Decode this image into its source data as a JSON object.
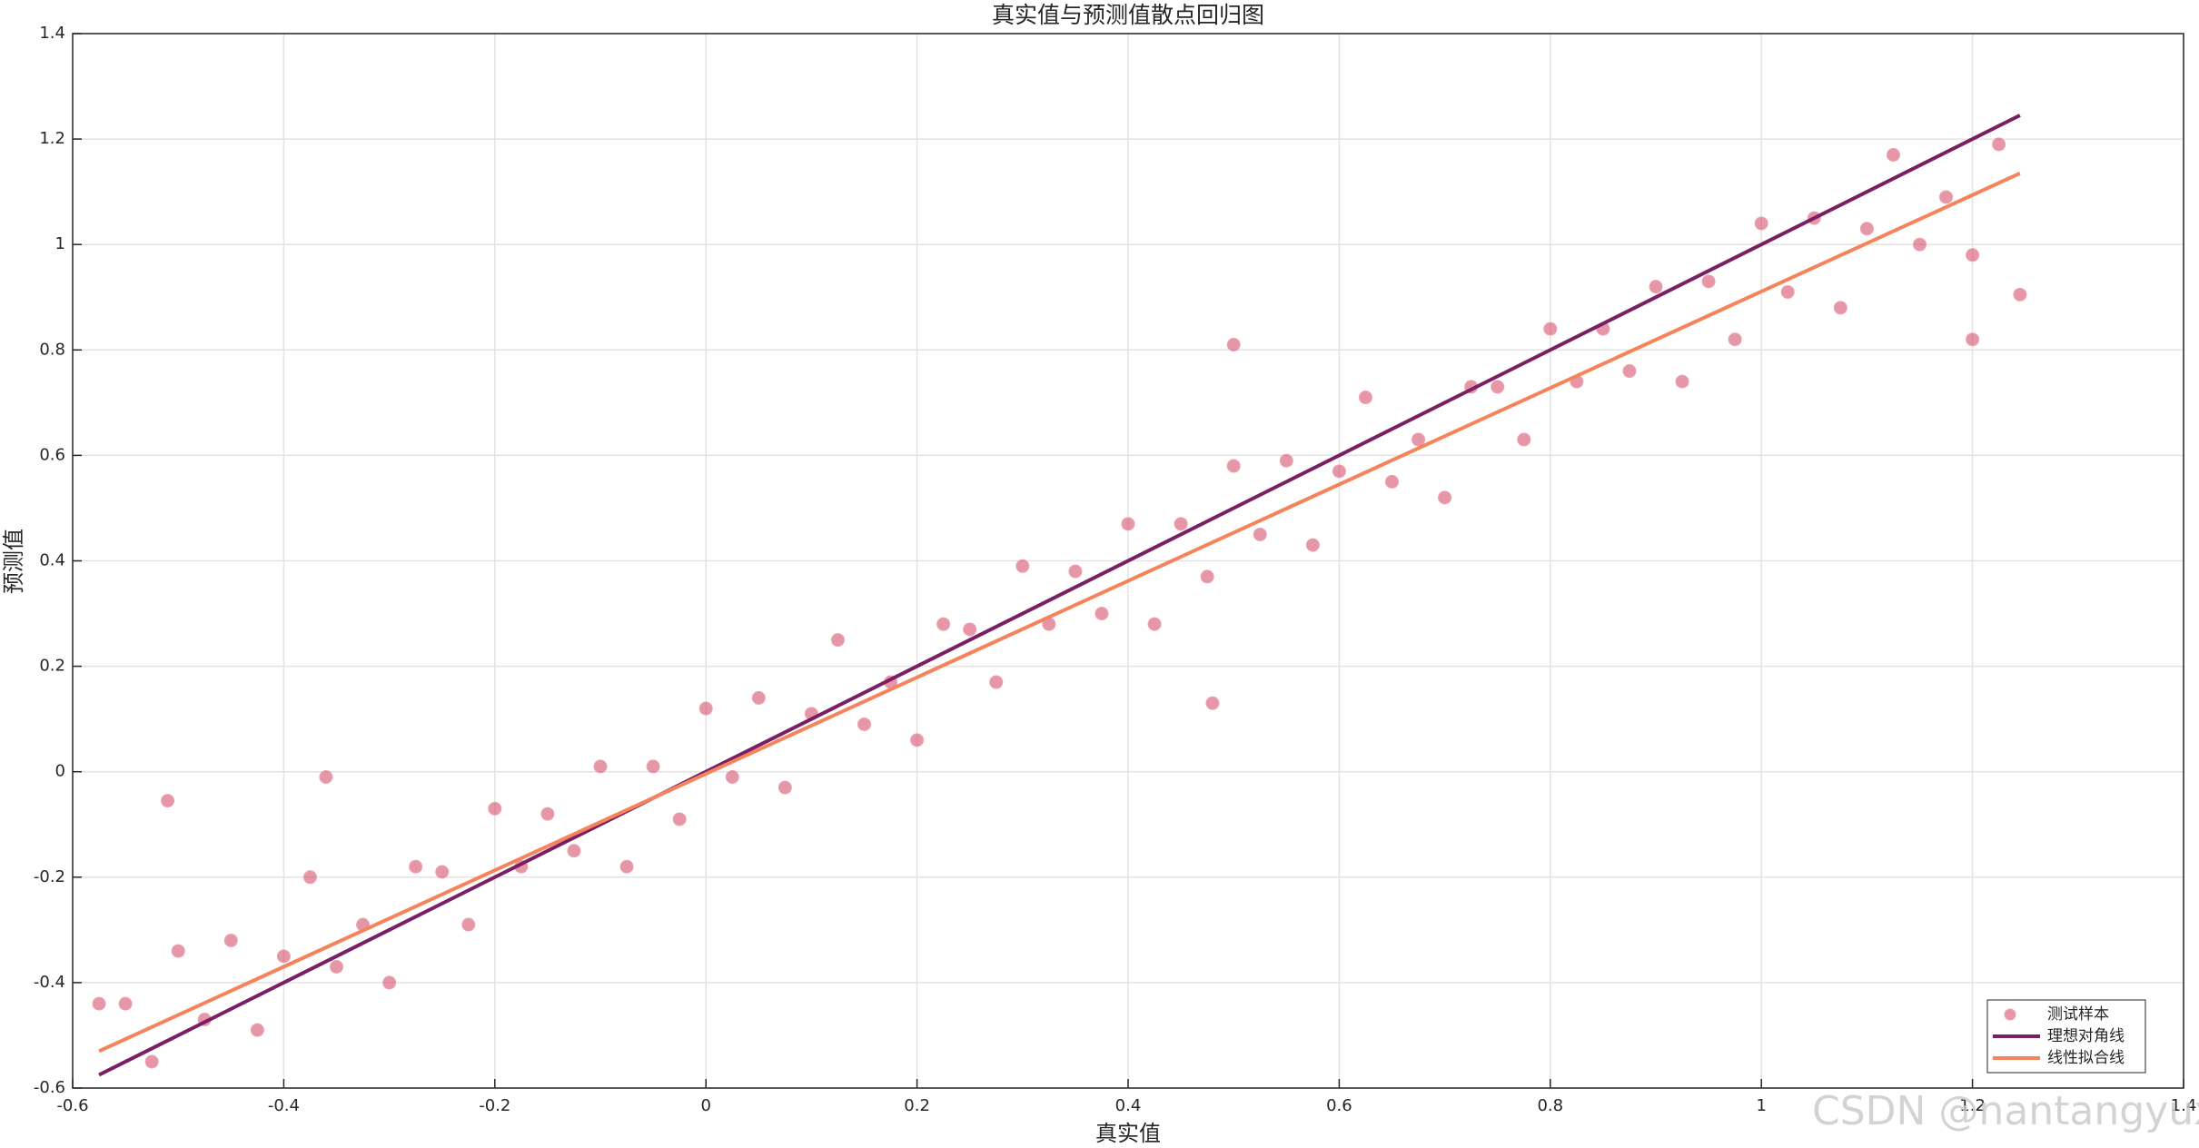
{
  "chart_data": {
    "type": "scatter",
    "title": "真实值与预测值散点回归图",
    "xlabel": "真实值",
    "ylabel": "预测值",
    "xlim": [
      -0.6,
      1.4
    ],
    "ylim": [
      -0.6,
      1.4
    ],
    "xticks": [
      -0.6,
      -0.4,
      -0.2,
      0,
      0.2,
      0.4,
      0.6,
      0.8,
      1,
      1.2,
      1.4
    ],
    "yticks": [
      -0.6,
      -0.4,
      -0.2,
      0,
      0.2,
      0.4,
      0.6,
      0.8,
      1,
      1.2,
      1.4
    ],
    "grid": true,
    "legend": "lower right",
    "series": [
      {
        "name": "测试样本",
        "type": "scatter",
        "color": "#cf3f5e",
        "x": [
          -0.55,
          -0.525,
          -0.5,
          -0.475,
          -0.45,
          -0.425,
          -0.4,
          -0.375,
          -0.35,
          -0.325,
          -0.3,
          -0.275,
          -0.25,
          -0.225,
          -0.2,
          -0.175,
          -0.15,
          -0.125,
          -0.1,
          -0.075,
          -0.05,
          -0.025,
          0,
          0.025,
          0.05,
          0.075,
          0.1,
          0.125,
          0.15,
          0.175,
          0.2,
          0.225,
          0.25,
          0.275,
          0.3,
          0.325,
          0.35,
          0.375,
          0.4,
          0.425,
          0.45,
          0.475,
          0.5,
          0.525,
          0.55,
          0.575,
          0.6,
          0.625,
          0.65,
          0.675,
          0.7,
          0.725,
          0.75,
          0.775,
          0.8,
          0.825,
          0.85,
          0.875,
          0.9,
          0.925,
          0.95,
          0.975,
          1,
          1.025,
          1.05,
          1.075,
          1.1,
          1.125,
          1.15,
          1.175,
          1.2,
          1.225,
          -0.575,
          -0.51,
          -0.36,
          1.245,
          0.5,
          0.48,
          1.2
        ],
        "y": [
          -0.44,
          -0.55,
          -0.34,
          -0.47,
          -0.32,
          -0.49,
          -0.35,
          -0.2,
          -0.37,
          -0.29,
          -0.4,
          -0.18,
          -0.19,
          -0.29,
          -0.07,
          -0.18,
          -0.08,
          -0.15,
          0.01,
          -0.18,
          0.01,
          -0.09,
          0.12,
          -0.01,
          0.14,
          -0.03,
          0.11,
          0.25,
          0.09,
          0.17,
          0.06,
          0.28,
          0.27,
          0.17,
          0.39,
          0.28,
          0.38,
          0.3,
          0.47,
          0.28,
          0.47,
          0.37,
          0.58,
          0.45,
          0.59,
          0.43,
          0.57,
          0.71,
          0.55,
          0.63,
          0.52,
          0.73,
          0.73,
          0.63,
          0.84,
          0.74,
          0.84,
          0.76,
          0.92,
          0.74,
          0.93,
          0.82,
          1.04,
          0.91,
          1.05,
          0.88,
          1.03,
          1.17,
          1,
          1.09,
          0.98,
          1.19,
          -0.44,
          -0.055,
          -0.01,
          0.905,
          0.81,
          0.13,
          0.82
        ]
      },
      {
        "name": "理想对角线",
        "type": "line",
        "color": "#7a1f64",
        "x": [
          -0.575,
          1.245
        ],
        "y": [
          -0.575,
          1.245
        ]
      },
      {
        "name": "线性拟合线",
        "type": "line",
        "color": "#f5845c",
        "x": [
          -0.575,
          1.245
        ],
        "y": [
          -0.53,
          1.135
        ]
      }
    ]
  },
  "watermark": "CSDN @nantangyuxi"
}
